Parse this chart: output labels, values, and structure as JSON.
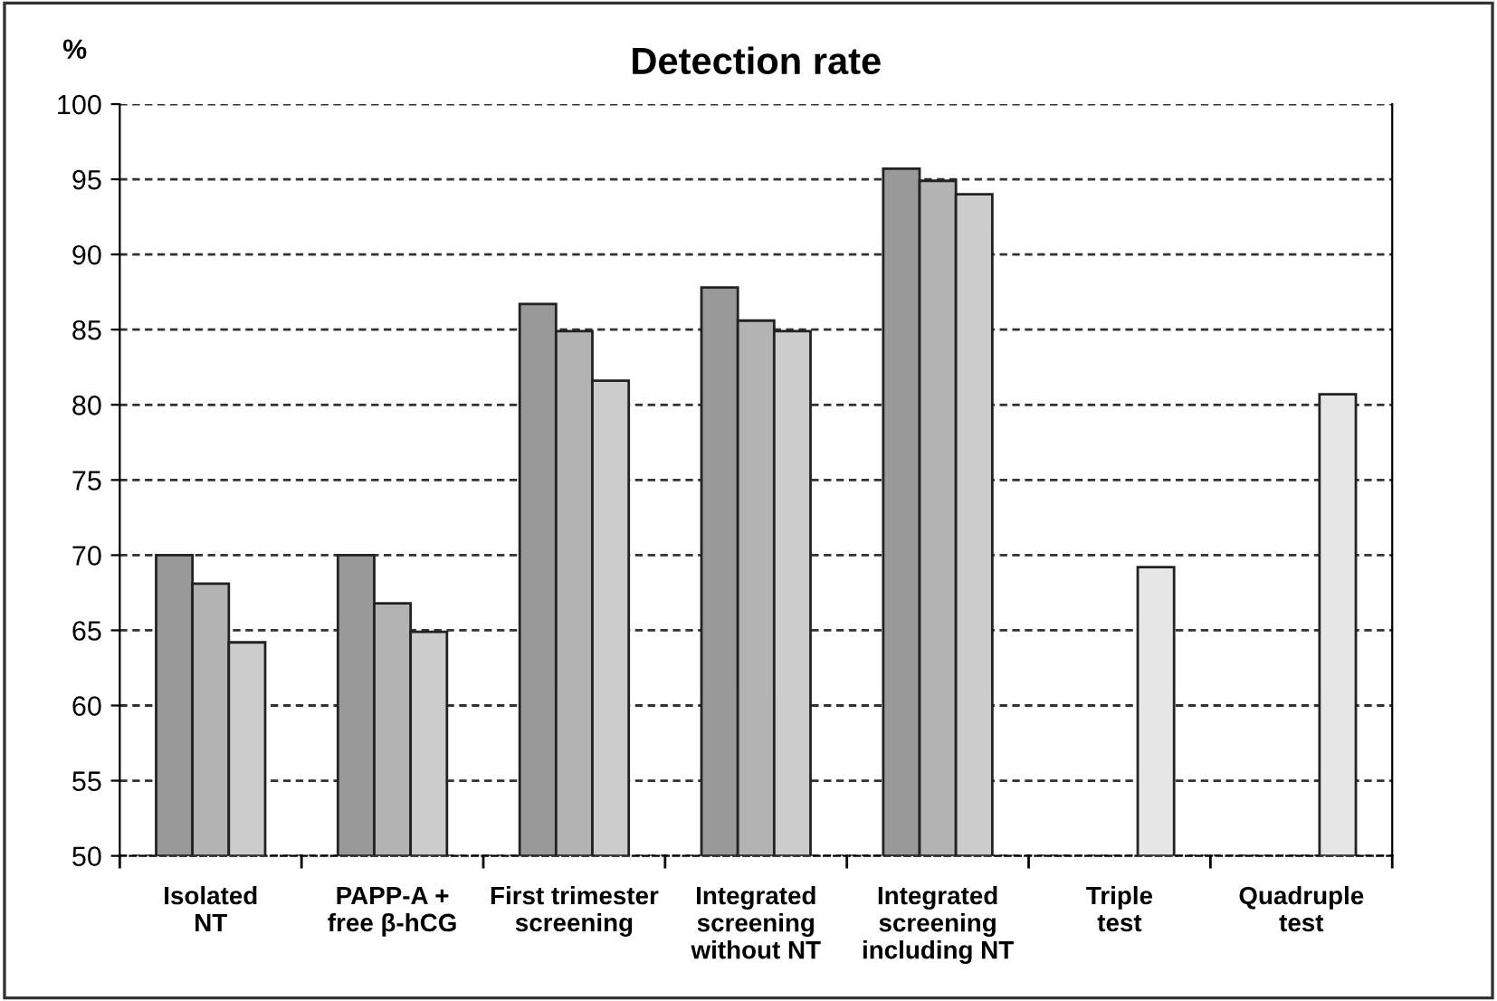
{
  "chart_data": {
    "type": "bar",
    "title": "Detection rate",
    "ylabel": "%",
    "categories": [
      "Isolated\nNT",
      "PAPP-A +\nfree β-hCG",
      "First trimester\nscreening",
      "Integrated\nscreening\nwithout NT",
      "Integrated\nscreening\nincluding NT",
      "Triple\ntest",
      "Quadruple\ntest"
    ],
    "series": [
      {
        "color": "#999999",
        "values": [
          70,
          70,
          86.7,
          87.8,
          95.7,
          null,
          null
        ]
      },
      {
        "color": "#b3b3b3",
        "values": [
          68.1,
          66.8,
          84.9,
          85.6,
          94.9,
          null,
          null
        ]
      },
      {
        "colors": [
          "#cccccc",
          "#cccccc",
          "#cccccc",
          "#cccccc",
          "#cccccc",
          "#e6e6e6",
          "#e6e6e6"
        ],
        "values": [
          64.2,
          64.9,
          81.6,
          84.9,
          94.0,
          69.2,
          80.7
        ]
      }
    ],
    "ylim": [
      50,
      100
    ],
    "yticks": [
      50,
      55,
      60,
      65,
      70,
      75,
      80,
      85,
      90,
      95,
      100
    ],
    "grid": "y",
    "legend": false
  }
}
